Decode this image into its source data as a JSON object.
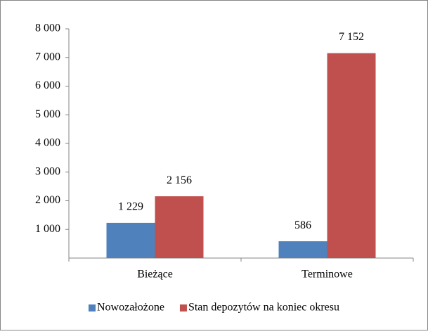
{
  "chart_data": {
    "type": "bar",
    "categories": [
      "Bieżące",
      "Terminowe"
    ],
    "series": [
      {
        "name": "Nowozałożone",
        "color": "#4f81bd",
        "values": [
          1229,
          586
        ],
        "value_labels": [
          "1 229",
          "586"
        ]
      },
      {
        "name": "Stan depozytów na koniec okresu",
        "color": "#c0504d",
        "values": [
          2156,
          7152
        ],
        "value_labels": [
          "2 156",
          "7 152"
        ]
      }
    ],
    "ylim": [
      0,
      8000
    ],
    "yticks": [
      {
        "value": 1000,
        "label": "1 000"
      },
      {
        "value": 2000,
        "label": "2 000"
      },
      {
        "value": 3000,
        "label": "3 000"
      },
      {
        "value": 4000,
        "label": "4 000"
      },
      {
        "value": 5000,
        "label": "5 000"
      },
      {
        "value": 6000,
        "label": "6 000"
      },
      {
        "value": 7000,
        "label": "7 000"
      },
      {
        "value": 8000,
        "label": "8 000"
      }
    ],
    "grid": false,
    "legend": "bottom"
  }
}
